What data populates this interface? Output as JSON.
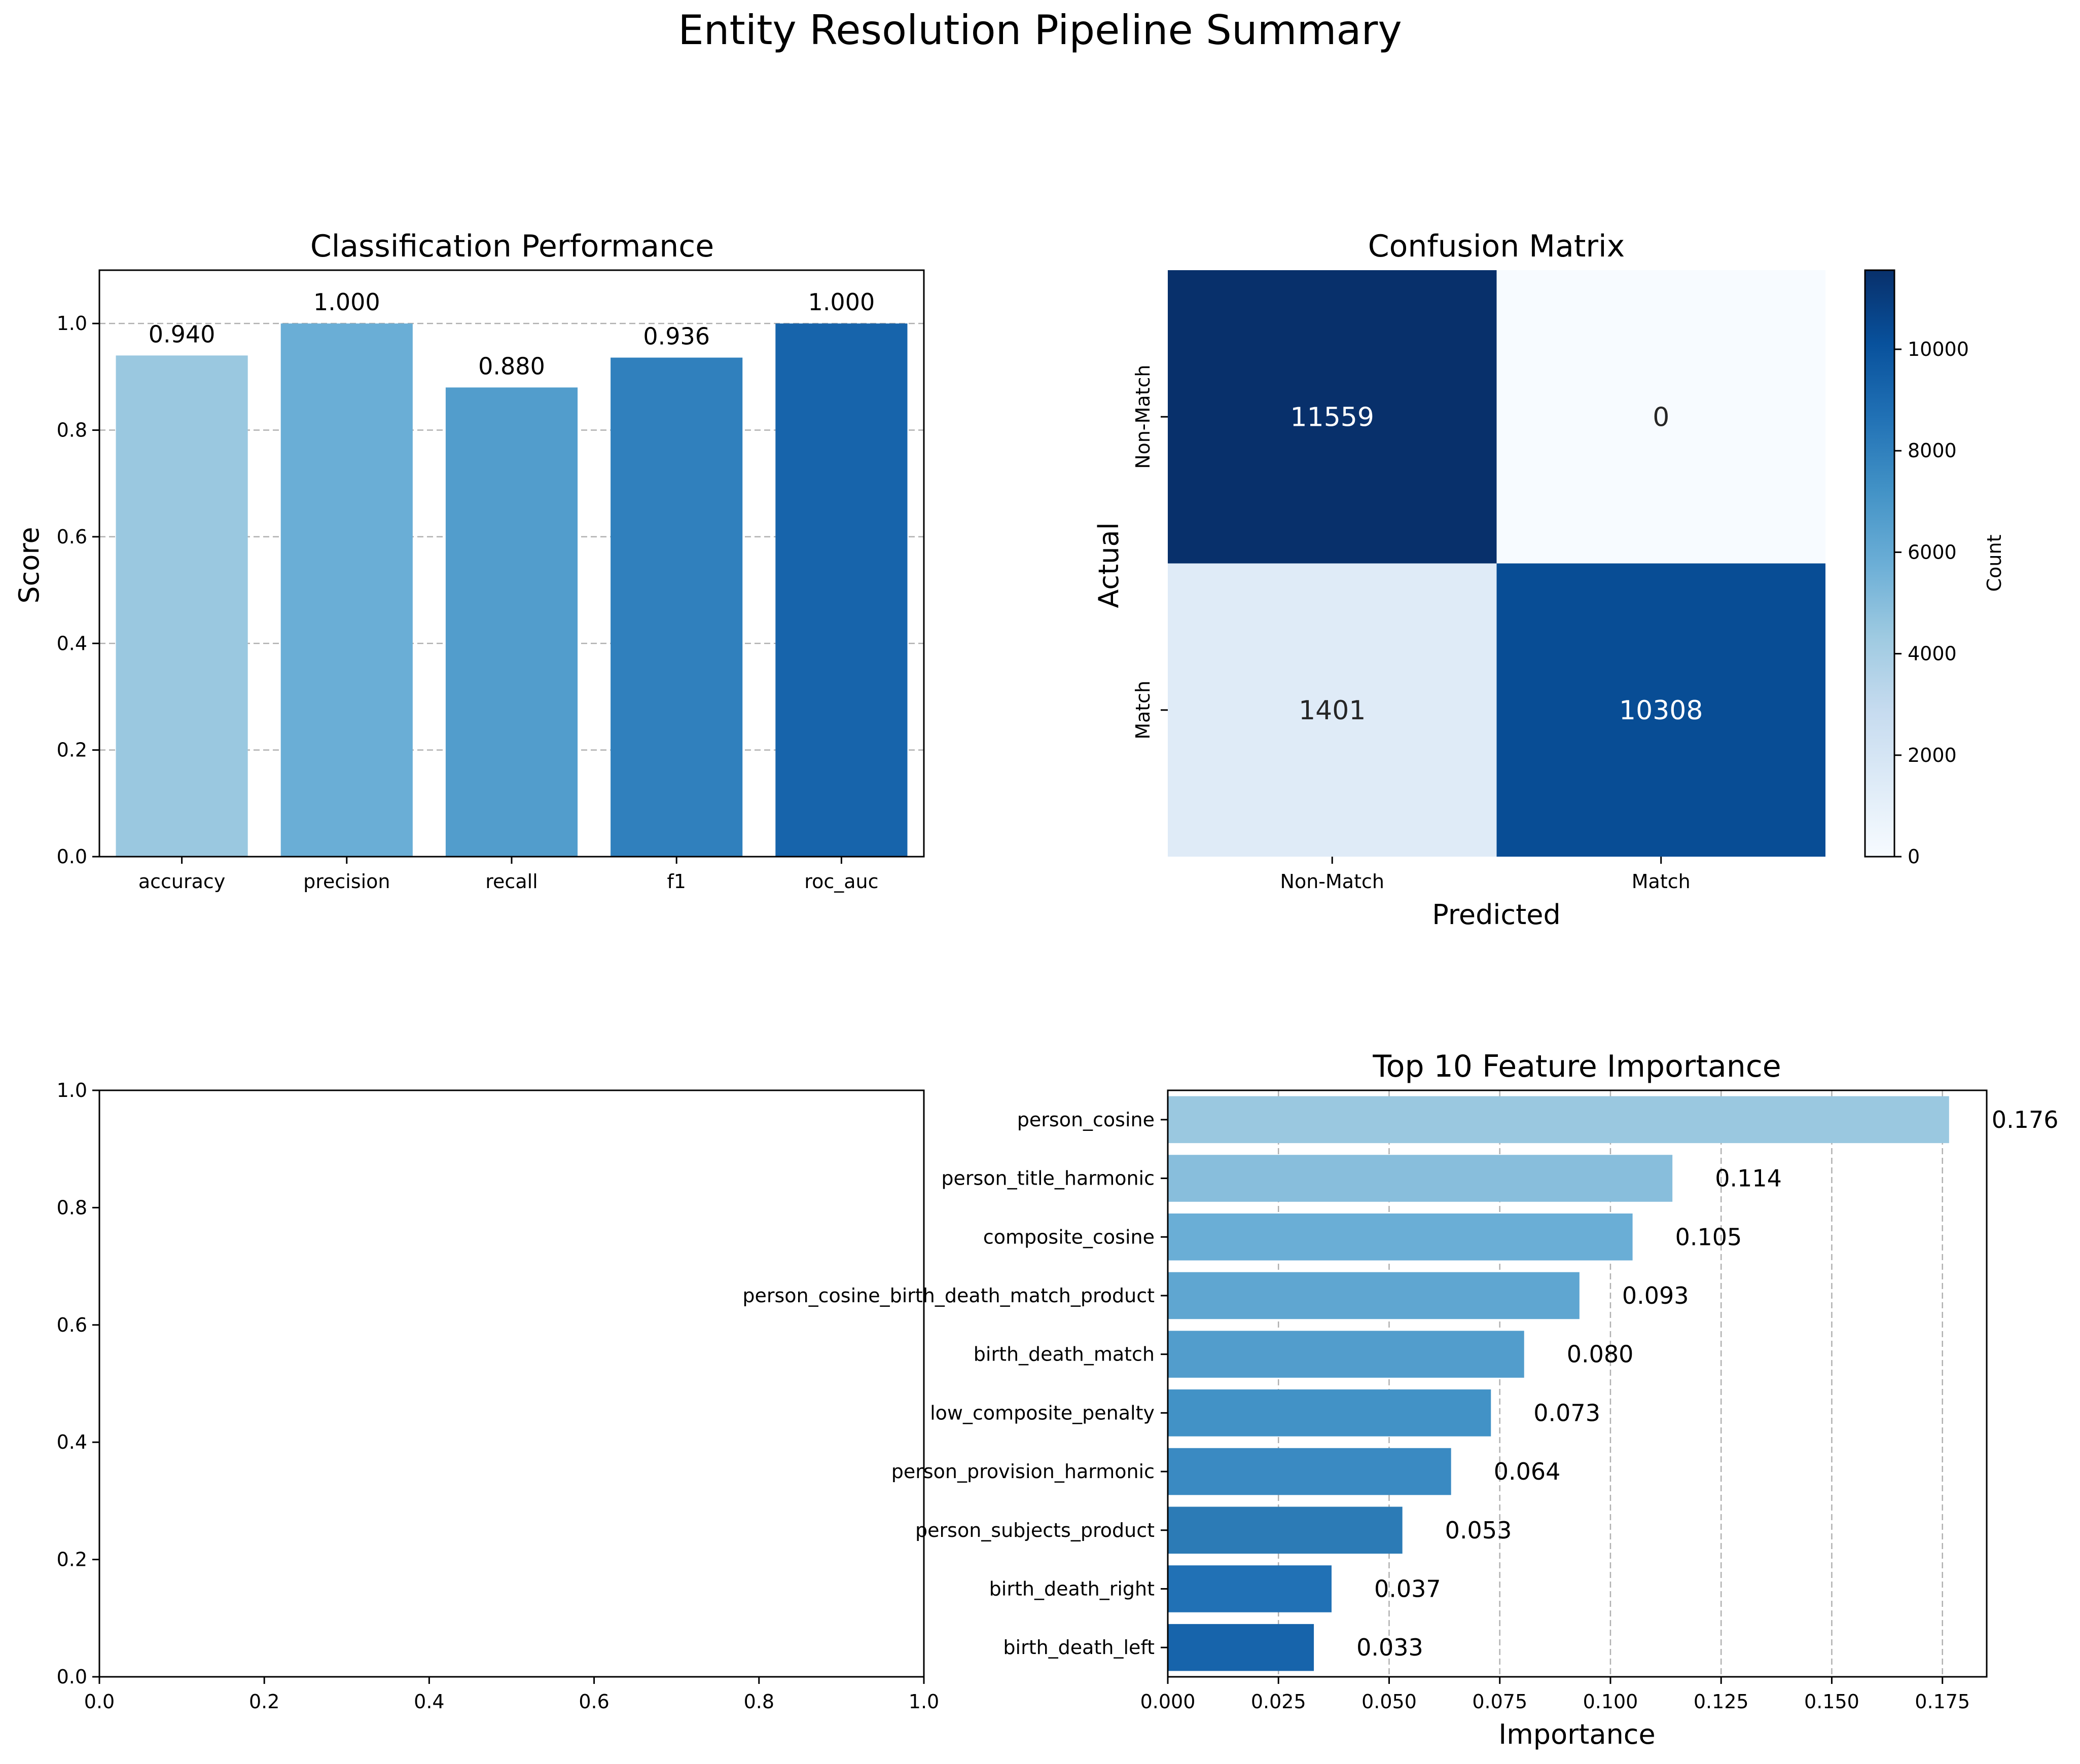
{
  "figure": {
    "title": "Entity Resolution Pipeline Summary"
  },
  "chart_data": [
    {
      "type": "bar",
      "title": "Classification Performance",
      "xlabel": "",
      "ylabel": "Score",
      "categories": [
        "accuracy",
        "precision",
        "recall",
        "f1",
        "roc_auc"
      ],
      "values": [
        0.94,
        1.0,
        0.88,
        0.936,
        1.0
      ],
      "value_labels": [
        "0.940",
        "1.000",
        "0.880",
        "0.936",
        "1.000"
      ],
      "colors": [
        "#9ac8e0",
        "#6aaed6",
        "#529dcc",
        "#3080bd",
        "#1764ab"
      ],
      "ylim": [
        0,
        1.1
      ],
      "yticks": [
        "0.0",
        "0.2",
        "0.4",
        "0.6",
        "0.8",
        "1.0"
      ],
      "grid": "y-dashed",
      "legend": "none"
    },
    {
      "type": "heatmap",
      "title": "Confusion Matrix",
      "xlabel": "Predicted",
      "ylabel": "Actual",
      "x_categories": [
        "Non-Match",
        "Match"
      ],
      "y_categories": [
        "Non-Match",
        "Match"
      ],
      "values": [
        [
          11559,
          0
        ],
        [
          1401,
          10308
        ]
      ],
      "colorbar": {
        "label": "Count",
        "range": [
          0,
          11559
        ],
        "ticks": [
          "0",
          "2000",
          "4000",
          "6000",
          "8000",
          "10000"
        ],
        "colormap": "Blues"
      }
    },
    {
      "type": "scatter",
      "title": "",
      "note": "empty axes",
      "xlim": [
        0,
        1
      ],
      "ylim": [
        0,
        1
      ],
      "xticks": [
        "0.0",
        "0.2",
        "0.4",
        "0.6",
        "0.8",
        "1.0"
      ],
      "yticks": [
        "0.0",
        "0.2",
        "0.4",
        "0.6",
        "0.8",
        "1.0"
      ],
      "series": []
    },
    {
      "type": "bar",
      "orientation": "horizontal",
      "title": "Top 10 Feature Importance",
      "xlabel": "Importance",
      "ylabel": "",
      "categories": [
        "person_cosine",
        "person_title_harmonic",
        "composite_cosine",
        "person_cosine_birth_death_match_product",
        "birth_death_match",
        "low_composite_penalty",
        "person_provision_harmonic",
        "person_subjects_product",
        "birth_death_right",
        "birth_death_left"
      ],
      "values": [
        0.1765,
        0.114,
        0.105,
        0.093,
        0.0805,
        0.073,
        0.064,
        0.053,
        0.037,
        0.033
      ],
      "value_labels": [
        "0.176",
        "0.114",
        "0.105",
        "0.093",
        "0.080",
        "0.073",
        "0.064",
        "0.053",
        "0.037",
        "0.033"
      ],
      "colors": [
        "#9ac8e0",
        "#88bedc",
        "#6aaed6",
        "#5fa6d1",
        "#529dcc",
        "#4292c6",
        "#3a8ac2",
        "#2c7bb6",
        "#2171b5",
        "#1764ab"
      ],
      "xlim": [
        0,
        0.185
      ],
      "xticks": [
        "0.000",
        "0.025",
        "0.050",
        "0.075",
        "0.100",
        "0.125",
        "0.150",
        "0.175"
      ],
      "grid": "x-dashed",
      "legend": "none"
    }
  ]
}
